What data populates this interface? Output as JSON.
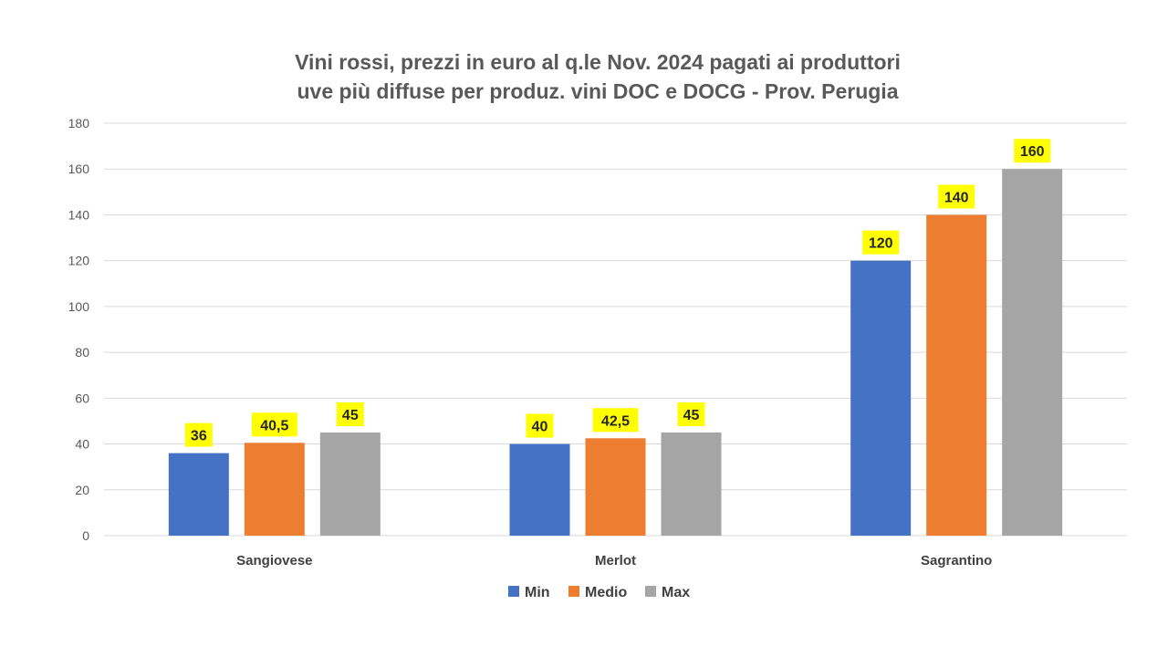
{
  "chart_data": {
    "type": "bar",
    "title_lines": [
      "Vini rossi, prezzi in euro al q.le Nov. 2024 pagati ai produttori",
      "uve più diffuse per produz. vini DOC e DOCG - Prov. Perugia"
    ],
    "categories": [
      "Sangiovese",
      "Merlot",
      "Sagrantino"
    ],
    "series": [
      {
        "name": "Min",
        "values": [
          36,
          40,
          120
        ],
        "labels": [
          "36",
          "40",
          "120"
        ],
        "color": "#4472C4"
      },
      {
        "name": "Medio",
        "values": [
          40.5,
          42.5,
          140
        ],
        "labels": [
          "40,5",
          "42,5",
          "140"
        ],
        "color": "#ED7D31"
      },
      {
        "name": "Max",
        "values": [
          45,
          45,
          160
        ],
        "labels": [
          "45",
          "45",
          "160"
        ],
        "color": "#A5A5A5"
      }
    ],
    "ylim": [
      0,
      180
    ],
    "yticks": [
      "0",
      "20",
      "40",
      "60",
      "80",
      "100",
      "120",
      "140",
      "160",
      "180"
    ],
    "grid": true,
    "legend": "bottom",
    "data_label_bg": "#FFFF00",
    "gridline_color": "#D9D9D9"
  }
}
